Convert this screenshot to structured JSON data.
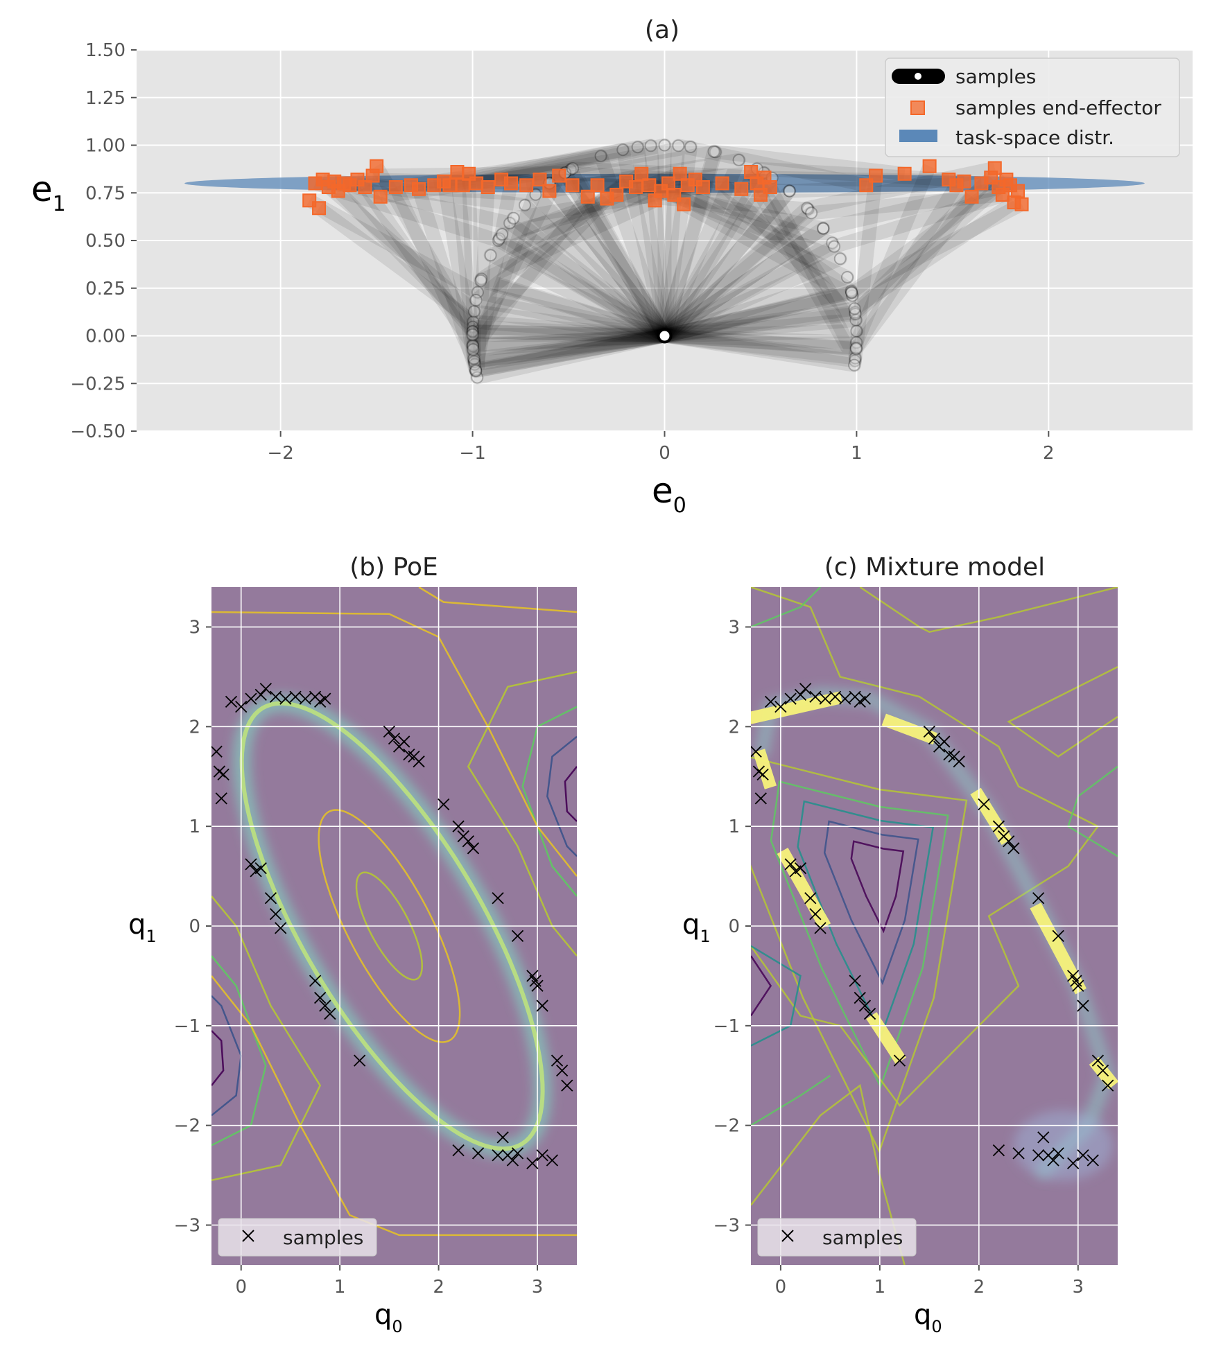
{
  "chart_data": [
    {
      "type": "scatter",
      "panel": "a",
      "title": "(a)",
      "xlabel": {
        "base": "e",
        "sub": "0"
      },
      "ylabel": {
        "base": "e",
        "sub": "1"
      },
      "xlim": [
        -2.75,
        2.75
      ],
      "ylim": [
        -0.5,
        1.5
      ],
      "xticks": [
        -2,
        -1,
        0,
        1,
        2
      ],
      "xtick_labels": [
        "−2",
        "−1",
        "0",
        "1",
        "2"
      ],
      "yticks": [
        1.5,
        1.25,
        1.0,
        0.75,
        0.5,
        0.25,
        0.0,
        -0.25,
        -0.5
      ],
      "ytick_labels": [
        "1.50",
        "1.25",
        "1.00",
        "0.75",
        "0.50",
        "0.25",
        "0.00",
        "−0.25",
        "−0.50"
      ],
      "grid": true,
      "legend_position": "top-right",
      "legend": [
        "samples",
        "samples end-effector",
        "task-space distr."
      ],
      "task_space_ellipse": {
        "center": [
          0.0,
          0.8
        ],
        "x_half_width": 2.5,
        "y_half_height": 0.05
      },
      "base": [
        0.0,
        0.0
      ],
      "end_effector_points": [
        [
          -1.85,
          0.71
        ],
        [
          -1.82,
          0.8
        ],
        [
          -1.8,
          0.67
        ],
        [
          -1.78,
          0.82
        ],
        [
          -1.75,
          0.78
        ],
        [
          -1.72,
          0.81
        ],
        [
          -1.7,
          0.76
        ],
        [
          -1.67,
          0.8
        ],
        [
          -1.64,
          0.79
        ],
        [
          -1.6,
          0.82
        ],
        [
          -1.56,
          0.78
        ],
        [
          -1.52,
          0.84
        ],
        [
          -1.5,
          0.89
        ],
        [
          -1.48,
          0.73
        ],
        [
          -1.4,
          0.78
        ],
        [
          -1.32,
          0.79
        ],
        [
          -1.28,
          0.77
        ],
        [
          -1.2,
          0.79
        ],
        [
          -1.15,
          0.81
        ],
        [
          -1.12,
          0.79
        ],
        [
          -1.08,
          0.86
        ],
        [
          -1.05,
          0.79
        ],
        [
          -1.02,
          0.85
        ],
        [
          -0.98,
          0.8
        ],
        [
          -0.92,
          0.78
        ],
        [
          -0.85,
          0.82
        ],
        [
          -0.8,
          0.8
        ],
        [
          -0.72,
          0.79
        ],
        [
          -0.65,
          0.82
        ],
        [
          -0.6,
          0.76
        ],
        [
          -0.55,
          0.84
        ],
        [
          -0.48,
          0.79
        ],
        [
          -0.4,
          0.73
        ],
        [
          -0.35,
          0.79
        ],
        [
          -0.3,
          0.72
        ],
        [
          -0.25,
          0.74
        ],
        [
          -0.2,
          0.81
        ],
        [
          -0.15,
          0.78
        ],
        [
          -0.12,
          0.85
        ],
        [
          -0.08,
          0.79
        ],
        [
          -0.05,
          0.71
        ],
        [
          -0.02,
          0.76
        ],
        [
          0.02,
          0.8
        ],
        [
          0.05,
          0.74
        ],
        [
          0.08,
          0.85
        ],
        [
          0.1,
          0.69
        ],
        [
          0.12,
          0.79
        ],
        [
          0.16,
          0.82
        ],
        [
          0.2,
          0.78
        ],
        [
          0.3,
          0.8
        ],
        [
          0.4,
          0.77
        ],
        [
          0.45,
          0.86
        ],
        [
          0.48,
          0.8
        ],
        [
          0.5,
          0.74
        ],
        [
          0.52,
          0.83
        ],
        [
          0.55,
          0.78
        ],
        [
          1.05,
          0.79
        ],
        [
          1.1,
          0.84
        ],
        [
          1.25,
          0.85
        ],
        [
          1.38,
          0.89
        ],
        [
          1.48,
          0.82
        ],
        [
          1.52,
          0.79
        ],
        [
          1.56,
          0.81
        ],
        [
          1.6,
          0.73
        ],
        [
          1.65,
          0.8
        ],
        [
          1.7,
          0.83
        ],
        [
          1.72,
          0.88
        ],
        [
          1.74,
          0.78
        ],
        [
          1.76,
          0.74
        ],
        [
          1.78,
          0.82
        ],
        [
          1.8,
          0.79
        ],
        [
          1.82,
          0.7
        ],
        [
          1.84,
          0.76
        ],
        [
          1.86,
          0.69
        ]
      ]
    },
    {
      "type": "contour",
      "panel": "b",
      "title": "(b) PoE",
      "xlabel": {
        "base": "q",
        "sub": "0"
      },
      "ylabel": {
        "base": "q",
        "sub": "1"
      },
      "xlim": [
        -0.3,
        3.4
      ],
      "ylim": [
        -3.4,
        3.4
      ],
      "xticks": [
        0,
        1,
        2,
        3
      ],
      "xtick_labels": [
        "0",
        "1",
        "2",
        "3"
      ],
      "yticks": [
        3,
        2,
        1,
        0,
        -1,
        -2,
        -3
      ],
      "ytick_labels": [
        "3",
        "2",
        "1",
        "0",
        "−1",
        "−2",
        "−3"
      ],
      "legend": [
        "samples"
      ],
      "legend_position": "lower-left",
      "samples": [
        [
          -0.25,
          1.75
        ],
        [
          -0.22,
          1.55
        ],
        [
          -0.2,
          1.28
        ],
        [
          -0.18,
          1.52
        ],
        [
          -0.1,
          2.25
        ],
        [
          0.0,
          2.2
        ],
        [
          0.1,
          2.28
        ],
        [
          0.2,
          2.32
        ],
        [
          0.25,
          2.38
        ],
        [
          0.35,
          2.3
        ],
        [
          0.45,
          2.28
        ],
        [
          0.55,
          2.3
        ],
        [
          0.65,
          2.28
        ],
        [
          0.75,
          2.3
        ],
        [
          0.8,
          2.25
        ],
        [
          0.85,
          2.28
        ],
        [
          1.5,
          1.95
        ],
        [
          1.55,
          1.88
        ],
        [
          1.6,
          1.8
        ],
        [
          1.65,
          1.85
        ],
        [
          1.7,
          1.72
        ],
        [
          1.75,
          1.7
        ],
        [
          1.8,
          1.65
        ],
        [
          2.05,
          1.22
        ],
        [
          2.2,
          1.0
        ],
        [
          2.25,
          0.9
        ],
        [
          2.3,
          0.85
        ],
        [
          2.35,
          0.78
        ],
        [
          2.6,
          0.28
        ],
        [
          2.8,
          -0.1
        ],
        [
          2.95,
          -0.5
        ],
        [
          2.98,
          -0.55
        ],
        [
          3.0,
          -0.6
        ],
        [
          3.05,
          -0.8
        ],
        [
          3.2,
          -1.35
        ],
        [
          3.25,
          -1.45
        ],
        [
          3.3,
          -1.6
        ],
        [
          0.1,
          0.62
        ],
        [
          0.15,
          0.55
        ],
        [
          0.2,
          0.58
        ],
        [
          0.3,
          0.28
        ],
        [
          0.35,
          0.12
        ],
        [
          0.4,
          -0.02
        ],
        [
          0.75,
          -0.55
        ],
        [
          0.8,
          -0.72
        ],
        [
          0.85,
          -0.8
        ],
        [
          0.9,
          -0.88
        ],
        [
          1.2,
          -1.35
        ],
        [
          2.2,
          -2.25
        ],
        [
          2.4,
          -2.28
        ],
        [
          2.6,
          -2.3
        ],
        [
          2.65,
          -2.12
        ],
        [
          2.7,
          -2.3
        ],
        [
          2.75,
          -2.35
        ],
        [
          2.8,
          -2.28
        ],
        [
          2.95,
          -2.38
        ],
        [
          3.05,
          -2.3
        ],
        [
          3.15,
          -2.35
        ]
      ]
    },
    {
      "type": "contour",
      "panel": "c",
      "title": "(c) Mixture model",
      "xlabel": {
        "base": "q",
        "sub": "0"
      },
      "ylabel": {
        "base": "q",
        "sub": "1"
      },
      "xlim": [
        -0.3,
        3.4
      ],
      "ylim": [
        -3.4,
        3.4
      ],
      "xticks": [
        0,
        1,
        2,
        3
      ],
      "xtick_labels": [
        "0",
        "1",
        "2",
        "3"
      ],
      "yticks": [
        3,
        2,
        1,
        0,
        -1,
        -2,
        -3
      ],
      "ytick_labels": [
        "3",
        "2",
        "1",
        "0",
        "−1",
        "−2",
        "−3"
      ],
      "legend": [
        "samples"
      ],
      "legend_position": "lower-left",
      "samples": [
        [
          -0.25,
          1.75
        ],
        [
          -0.22,
          1.55
        ],
        [
          -0.2,
          1.28
        ],
        [
          -0.18,
          1.52
        ],
        [
          -0.1,
          2.25
        ],
        [
          0.0,
          2.2
        ],
        [
          0.1,
          2.28
        ],
        [
          0.2,
          2.32
        ],
        [
          0.25,
          2.38
        ],
        [
          0.35,
          2.3
        ],
        [
          0.45,
          2.28
        ],
        [
          0.55,
          2.3
        ],
        [
          0.65,
          2.28
        ],
        [
          0.75,
          2.3
        ],
        [
          0.8,
          2.25
        ],
        [
          0.85,
          2.28
        ],
        [
          1.5,
          1.95
        ],
        [
          1.55,
          1.88
        ],
        [
          1.6,
          1.8
        ],
        [
          1.65,
          1.85
        ],
        [
          1.7,
          1.72
        ],
        [
          1.75,
          1.7
        ],
        [
          1.8,
          1.65
        ],
        [
          2.05,
          1.22
        ],
        [
          2.2,
          1.0
        ],
        [
          2.25,
          0.9
        ],
        [
          2.3,
          0.85
        ],
        [
          2.35,
          0.78
        ],
        [
          2.6,
          0.28
        ],
        [
          2.8,
          -0.1
        ],
        [
          2.95,
          -0.5
        ],
        [
          2.98,
          -0.55
        ],
        [
          3.0,
          -0.6
        ],
        [
          3.05,
          -0.8
        ],
        [
          3.2,
          -1.35
        ],
        [
          3.25,
          -1.45
        ],
        [
          3.3,
          -1.6
        ],
        [
          0.1,
          0.62
        ],
        [
          0.15,
          0.55
        ],
        [
          0.2,
          0.58
        ],
        [
          0.3,
          0.28
        ],
        [
          0.35,
          0.12
        ],
        [
          0.4,
          -0.02
        ],
        [
          0.75,
          -0.55
        ],
        [
          0.8,
          -0.72
        ],
        [
          0.85,
          -0.8
        ],
        [
          0.9,
          -0.88
        ],
        [
          1.2,
          -1.35
        ],
        [
          2.2,
          -2.25
        ],
        [
          2.4,
          -2.28
        ],
        [
          2.6,
          -2.3
        ],
        [
          2.65,
          -2.12
        ],
        [
          2.7,
          -2.3
        ],
        [
          2.75,
          -2.35
        ],
        [
          2.8,
          -2.28
        ],
        [
          2.95,
          -2.38
        ],
        [
          3.05,
          -2.3
        ],
        [
          3.15,
          -2.35
        ]
      ],
      "highlight_segments": [
        [
          [
            -0.25,
            2.1
          ],
          [
            0.55,
            2.28
          ]
        ],
        [
          [
            1.1,
            2.05
          ],
          [
            1.5,
            1.9
          ]
        ],
        [
          [
            -0.2,
            1.7
          ],
          [
            -0.12,
            1.45
          ]
        ],
        [
          [
            2.0,
            1.3
          ],
          [
            2.25,
            0.9
          ]
        ],
        [
          [
            0.05,
            0.7
          ],
          [
            0.42,
            0.05
          ]
        ],
        [
          [
            2.6,
            0.15
          ],
          [
            3.0,
            -0.6
          ]
        ],
        [
          [
            0.95,
            -0.95
          ],
          [
            1.18,
            -1.3
          ]
        ],
        [
          [
            3.2,
            -1.4
          ],
          [
            3.32,
            -1.55
          ]
        ]
      ]
    }
  ],
  "colors": {
    "axes_bg": "#e5e5e5",
    "density_bg": "#947a9c",
    "grid": "#ffffff",
    "end_effector": "#f4682a",
    "ellipse": "#5b88b8",
    "samples_marker": "#000000",
    "contours": [
      "#440154",
      "#3b528b",
      "#21918c",
      "#5ec962",
      "#b5c734",
      "#e2c02a"
    ],
    "ring": "#7fe0c6",
    "highlight": "#f7f27a"
  }
}
